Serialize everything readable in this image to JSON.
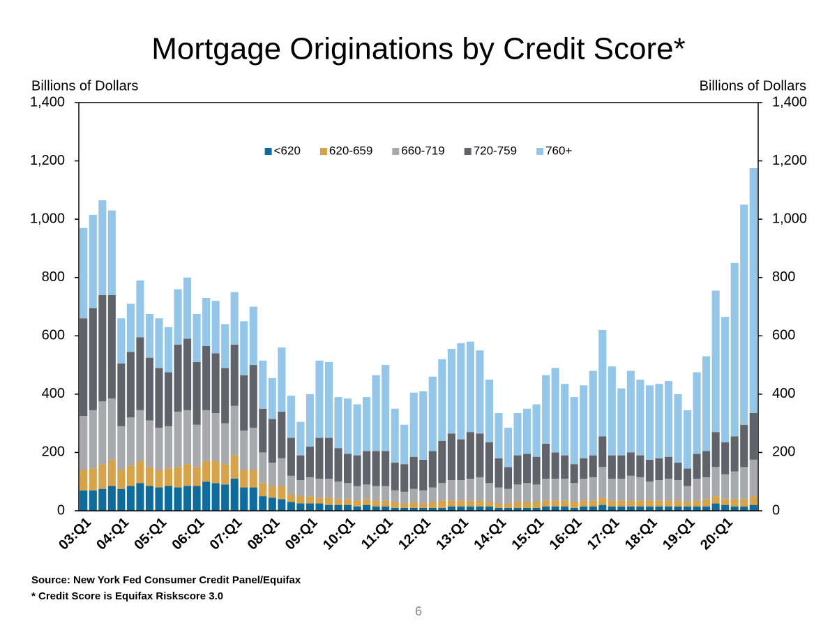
{
  "chart_data": {
    "type": "stacked_bar",
    "title": "Mortgage Originations by Credit Score*",
    "ylabel": "Billions of Dollars",
    "y2label": "Billions of Dollars",
    "categories": [
      "03:Q1",
      null,
      null,
      null,
      "04:Q1",
      null,
      null,
      null,
      "05:Q1",
      null,
      null,
      null,
      "06:Q1",
      null,
      null,
      null,
      "07:Q1",
      null,
      null,
      null,
      "08:Q1",
      null,
      null,
      null,
      "09:Q1",
      null,
      null,
      null,
      "10:Q1",
      null,
      null,
      null,
      "11:Q1",
      null,
      null,
      null,
      "12:Q1",
      null,
      null,
      null,
      "13:Q1",
      null,
      null,
      null,
      "14:Q1",
      null,
      null,
      null,
      "15:Q1",
      null,
      null,
      null,
      "16:Q1",
      null,
      null,
      null,
      "17:Q1",
      null,
      null,
      null,
      "18:Q1",
      null,
      null,
      null,
      "19:Q1",
      null,
      null,
      null,
      "20:Q1",
      null,
      null,
      null
    ],
    "series": [
      {
        "name": "<620",
        "color": "#0f6b9c",
        "values": [
          70,
          70,
          75,
          85,
          75,
          85,
          95,
          85,
          80,
          85,
          80,
          85,
          85,
          100,
          95,
          90,
          110,
          80,
          80,
          50,
          45,
          40,
          30,
          25,
          25,
          25,
          20,
          20,
          20,
          15,
          20,
          15,
          15,
          10,
          10,
          10,
          10,
          10,
          10,
          15,
          15,
          15,
          15,
          15,
          10,
          10,
          10,
          10,
          10,
          15,
          15,
          15,
          10,
          15,
          15,
          20,
          15,
          15,
          15,
          15,
          15,
          15,
          15,
          15,
          15,
          15,
          15,
          25,
          20,
          15,
          15,
          20
        ]
      },
      {
        "name": "620-659",
        "color": "#d6a24a",
        "values": [
          70,
          75,
          85,
          90,
          65,
          70,
          75,
          65,
          60,
          60,
          70,
          75,
          65,
          70,
          75,
          70,
          80,
          60,
          60,
          45,
          40,
          45,
          25,
          25,
          25,
          20,
          25,
          20,
          20,
          20,
          20,
          20,
          20,
          20,
          15,
          20,
          15,
          20,
          25,
          20,
          20,
          20,
          20,
          15,
          15,
          15,
          20,
          20,
          20,
          20,
          20,
          20,
          20,
          20,
          20,
          25,
          20,
          20,
          20,
          20,
          20,
          20,
          20,
          20,
          15,
          20,
          25,
          25,
          20,
          25,
          25,
          30
        ]
      },
      {
        "name": "660-719",
        "color": "#a7a9ac",
        "values": [
          185,
          200,
          215,
          210,
          150,
          165,
          175,
          160,
          145,
          145,
          190,
          185,
          145,
          175,
          165,
          140,
          170,
          135,
          145,
          105,
          80,
          95,
          65,
          55,
          65,
          65,
          65,
          60,
          55,
          50,
          50,
          50,
          50,
          40,
          40,
          45,
          45,
          50,
          60,
          70,
          70,
          75,
          80,
          65,
          55,
          50,
          60,
          65,
          60,
          75,
          75,
          75,
          65,
          75,
          80,
          105,
          75,
          75,
          85,
          80,
          65,
          70,
          75,
          70,
          55,
          75,
          75,
          100,
          85,
          95,
          110,
          125
        ]
      },
      {
        "name": "720-759",
        "color": "#60646a",
        "values": [
          335,
          350,
          365,
          355,
          215,
          225,
          250,
          215,
          205,
          185,
          230,
          245,
          215,
          220,
          205,
          190,
          210,
          190,
          215,
          150,
          150,
          160,
          130,
          85,
          105,
          140,
          140,
          115,
          100,
          105,
          115,
          120,
          120,
          95,
          95,
          110,
          105,
          125,
          145,
          160,
          140,
          160,
          150,
          140,
          100,
          75,
          100,
          100,
          95,
          120,
          90,
          80,
          65,
          70,
          75,
          105,
          80,
          80,
          80,
          75,
          75,
          75,
          75,
          60,
          60,
          85,
          90,
          120,
          110,
          120,
          145,
          160
        ]
      },
      {
        "name": "760+",
        "color": "#93c6e8",
        "values": [
          310,
          320,
          325,
          290,
          155,
          165,
          195,
          150,
          170,
          155,
          190,
          210,
          165,
          165,
          180,
          150,
          180,
          185,
          200,
          165,
          140,
          220,
          145,
          115,
          180,
          265,
          260,
          175,
          190,
          175,
          185,
          260,
          295,
          185,
          135,
          220,
          235,
          255,
          280,
          290,
          330,
          310,
          285,
          215,
          155,
          135,
          145,
          155,
          180,
          235,
          290,
          245,
          230,
          250,
          290,
          365,
          305,
          230,
          280,
          260,
          255,
          255,
          260,
          235,
          200,
          280,
          325,
          485,
          430,
          595,
          755,
          840
        ]
      }
    ],
    "ylim": [
      0,
      1400
    ],
    "yticks": [
      0,
      200,
      400,
      600,
      800,
      {
        "value": 1000,
        "label": "1,000"
      },
      {
        "value": 1200,
        "label": "1,200"
      },
      {
        "value": 1400,
        "label": "1,400"
      }
    ],
    "y2lim": [
      0,
      1400
    ],
    "y2ticks": [
      0,
      200,
      400,
      600,
      800,
      {
        "value": 1000,
        "label": "1,000"
      },
      {
        "value": 1200,
        "label": "1,200"
      },
      {
        "value": 1400,
        "label": "1,400"
      }
    ],
    "legend": "top",
    "source": "Source: New York Fed Consumer Credit Panel/Equifax",
    "footnote": "* Credit Score is Equifax Riskscore 3.0",
    "page_number": "6"
  }
}
